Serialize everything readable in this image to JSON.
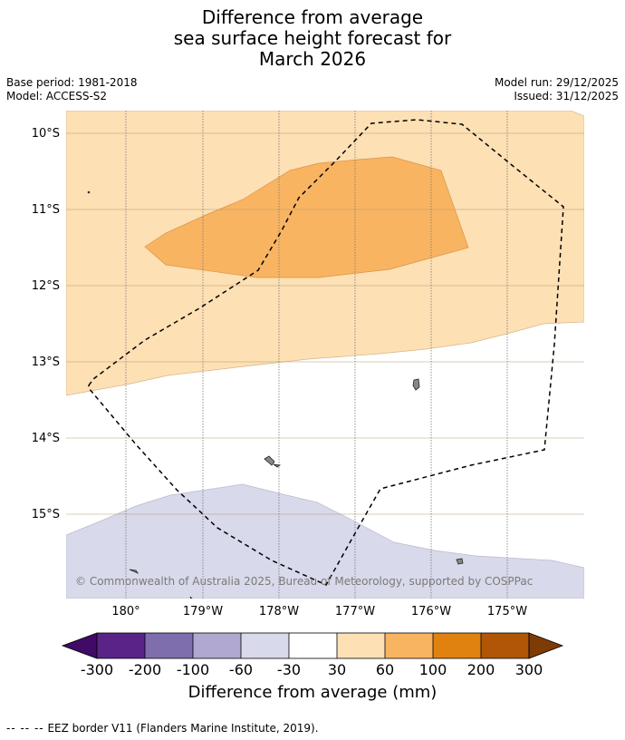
{
  "title": {
    "line1": "Difference from average",
    "line2": "sea surface height forecast for",
    "line3": "March 2026"
  },
  "meta": {
    "base_period": "Base period: 1981-2018",
    "model": "Model: ACCESS-S2",
    "model_run": "Model run: 29/12/2025",
    "issued": "Issued: 31/12/2025"
  },
  "map": {
    "lat_labels": [
      "10°S",
      "11°S",
      "12°S",
      "13°S",
      "14°S",
      "15°S"
    ],
    "lon_labels": [
      "180°",
      "179°W",
      "178°W",
      "177°W",
      "176°W",
      "175°W"
    ],
    "copyright": "© Commonwealth of Australia 2025, Bureau of Meteorology, supported by COSPPac",
    "colors": {
      "band_30_60": "#fde0b4",
      "band_60_100": "#f9b462",
      "band_neg60_neg30": "#d8d9ea",
      "neutral": "#ffffff",
      "land": "#888888"
    }
  },
  "colorbar": {
    "labels": [
      "-300",
      "-200",
      "-100",
      "-60",
      "-30",
      "30",
      "60",
      "100",
      "200",
      "300"
    ],
    "colors": [
      "#3f0b66",
      "#5a2388",
      "#7e6eae",
      "#b0a8d0",
      "#d8d9ea",
      "#ffffff",
      "#fde0b4",
      "#f9b462",
      "#e08210",
      "#b05606",
      "#7e3c05"
    ],
    "title": "Difference from average (mm)"
  },
  "legend": {
    "dash": "-- -- --",
    "label": "EEZ border V11 (Flanders Marine Institute, 2019)."
  }
}
